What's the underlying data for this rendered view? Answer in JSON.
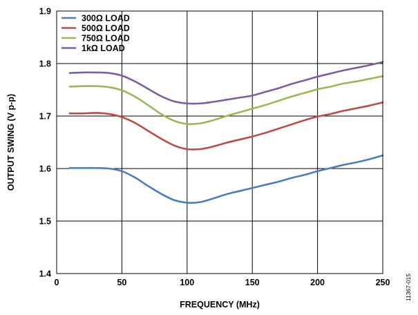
{
  "figure_id": "11367-015",
  "chart_data": {
    "type": "line",
    "title": "",
    "xlabel": "FREQUENCY (MHz)",
    "ylabel": "OUTPUT SWING (V p-p)",
    "xlim": [
      0,
      250
    ],
    "ylim": [
      1.4,
      1.9
    ],
    "xticks": [
      0,
      50,
      100,
      150,
      200,
      250
    ],
    "xtick_labels": [
      "0",
      "50",
      "100",
      "150",
      "200",
      "250"
    ],
    "yticks": [
      1.4,
      1.5,
      1.6,
      1.7,
      1.8,
      1.9
    ],
    "ytick_labels": [
      "1.4",
      "1.5",
      "1.6",
      "1.7",
      "1.8",
      "1.9"
    ],
    "grid": true,
    "legend_position": "top-left",
    "x": [
      10,
      20,
      30,
      40,
      50,
      60,
      70,
      80,
      90,
      100,
      110,
      120,
      130,
      140,
      150,
      160,
      170,
      180,
      190,
      200,
      210,
      220,
      230,
      240,
      250
    ],
    "series": [
      {
        "name": "300Ω LOAD",
        "color": "#4a7ebb",
        "values": [
          1.601,
          1.601,
          1.601,
          1.6,
          1.595,
          1.583,
          1.567,
          1.552,
          1.54,
          1.535,
          1.536,
          1.543,
          1.551,
          1.557,
          1.563,
          1.569,
          1.575,
          1.582,
          1.588,
          1.595,
          1.601,
          1.607,
          1.612,
          1.618,
          1.625
        ]
      },
      {
        "name": "500Ω LOAD",
        "color": "#be4b48",
        "values": [
          1.705,
          1.705,
          1.706,
          1.704,
          1.698,
          1.687,
          1.672,
          1.657,
          1.644,
          1.637,
          1.637,
          1.642,
          1.649,
          1.655,
          1.661,
          1.668,
          1.676,
          1.684,
          1.692,
          1.699,
          1.704,
          1.71,
          1.715,
          1.72,
          1.726
        ]
      },
      {
        "name": "750Ω LOAD",
        "color": "#98b954",
        "values": [
          1.756,
          1.757,
          1.757,
          1.755,
          1.749,
          1.737,
          1.721,
          1.704,
          1.691,
          1.685,
          1.686,
          1.692,
          1.7,
          1.707,
          1.714,
          1.721,
          1.729,
          1.737,
          1.744,
          1.751,
          1.756,
          1.762,
          1.766,
          1.771,
          1.776
        ]
      },
      {
        "name": "1kΩ LOAD",
        "color": "#7d5fa0",
        "values": [
          1.782,
          1.783,
          1.783,
          1.782,
          1.777,
          1.766,
          1.752,
          1.738,
          1.728,
          1.724,
          1.724,
          1.727,
          1.731,
          1.735,
          1.739,
          1.746,
          1.753,
          1.761,
          1.768,
          1.775,
          1.781,
          1.787,
          1.792,
          1.797,
          1.803
        ]
      }
    ]
  }
}
